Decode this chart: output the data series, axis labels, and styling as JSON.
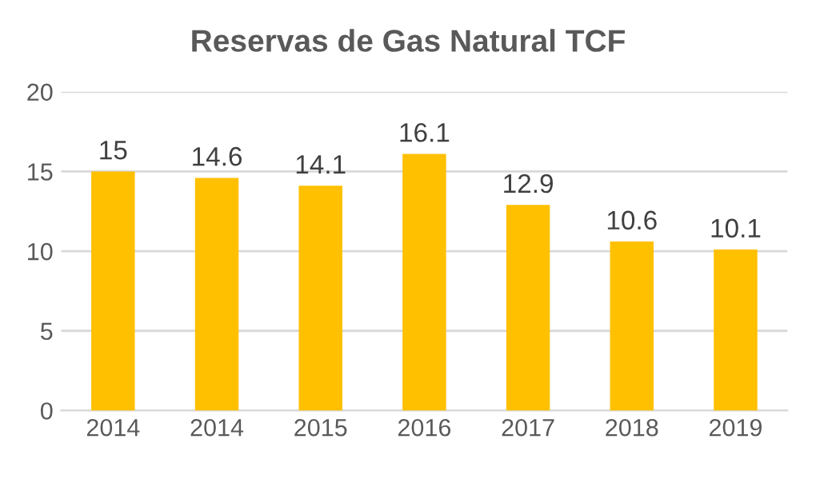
{
  "chart_data": {
    "type": "bar",
    "title": "Reservas de Gas Natural TCF",
    "categories": [
      "2014",
      "2014",
      "2015",
      "2016",
      "2017",
      "2018",
      "2019"
    ],
    "values": [
      15,
      14.6,
      14.1,
      16.1,
      12.9,
      10.6,
      10.1
    ],
    "color": "#ffc000",
    "ylim": [
      0,
      20
    ],
    "yticks": [
      0,
      5,
      10,
      15,
      20
    ],
    "grid": "y",
    "data_labels": true
  }
}
